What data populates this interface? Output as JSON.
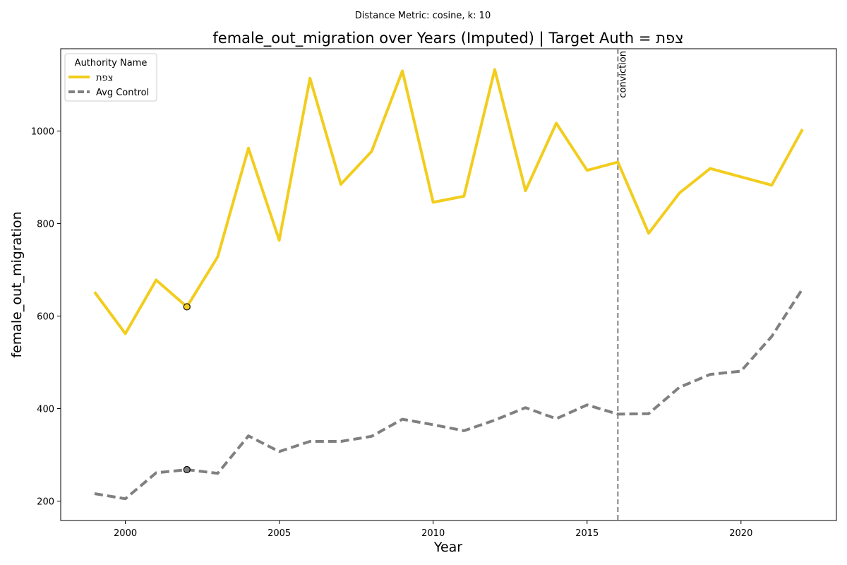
{
  "chart_data": {
    "type": "line",
    "suptitle": "Distance Metric: cosine, k: 10",
    "title": "female_out_migration over Years (Imputed) | Target Auth = צפת",
    "xlabel": "Year",
    "ylabel": "female_out_migration",
    "xlim": [
      1997.9,
      2023.1
    ],
    "ylim": [
      158,
      1178
    ],
    "xticks": [
      2000,
      2005,
      2010,
      2015,
      2020
    ],
    "yticks": [
      200,
      400,
      600,
      800,
      1000
    ],
    "grid": false,
    "legend": {
      "title": "Authority Name",
      "placement": "top-left",
      "entries": [
        "צפת",
        "Avg Control"
      ]
    },
    "x": [
      1999,
      2000,
      2001,
      2002,
      2003,
      2004,
      2005,
      2006,
      2007,
      2008,
      2009,
      2010,
      2011,
      2012,
      2013,
      2014,
      2015,
      2016,
      2017,
      2018,
      2019,
      2020,
      2021,
      2022
    ],
    "series": [
      {
        "name": "צפת",
        "color": "#f2cd1e",
        "style": "solid",
        "values": [
          652,
          562,
          678,
          620,
          728,
          963,
          764,
          1114,
          885,
          956,
          1130,
          846,
          859,
          1133,
          871,
          1017,
          915,
          933,
          779,
          866,
          919,
          901,
          883,
          1004
        ]
      },
      {
        "name": "Avg Control",
        "color": "#808080",
        "style": "dashed",
        "values": [
          216,
          205,
          261,
          268,
          260,
          341,
          307,
          329,
          329,
          340,
          377,
          365,
          352,
          375,
          402,
          378,
          408,
          388,
          389,
          446,
          474,
          481,
          556,
          659
        ]
      }
    ],
    "markers": [
      {
        "series": "צפת",
        "x": 2002,
        "y": 620,
        "color": "#f2cd1e"
      },
      {
        "series": "Avg Control",
        "x": 2002,
        "y": 268,
        "color": "#808080"
      }
    ],
    "vline": {
      "x": 2016,
      "label": "conviction",
      "color": "#808080"
    }
  }
}
